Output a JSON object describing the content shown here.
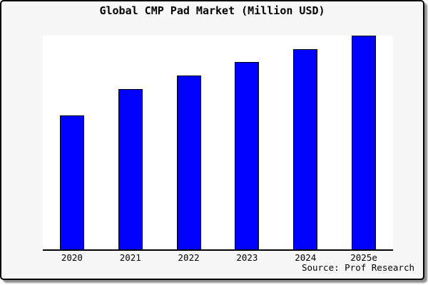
{
  "chart_data": {
    "type": "bar",
    "title": "Global CMP Pad Market (Million USD)",
    "source": "Source: Prof Research",
    "categories": [
      "2020",
      "2021",
      "2022",
      "2023",
      "2024",
      "2025e"
    ],
    "values": [
      62.7,
      75.0,
      81.3,
      87.7,
      93.7,
      100.0
    ],
    "values_note": "no y-axis scale shown; values are relative bar heights with 2025e = 100",
    "xlabel": "",
    "ylabel": "",
    "ylim": [
      0,
      100
    ],
    "grid": false,
    "legend": null,
    "bar_color": "#0000ff",
    "bar_border_color": "#000000"
  },
  "colors": {
    "background": "#f7f7f7",
    "plot_background": "#ffffff",
    "frame_border": "#000000",
    "axis": "#000000",
    "text": "#000000"
  }
}
